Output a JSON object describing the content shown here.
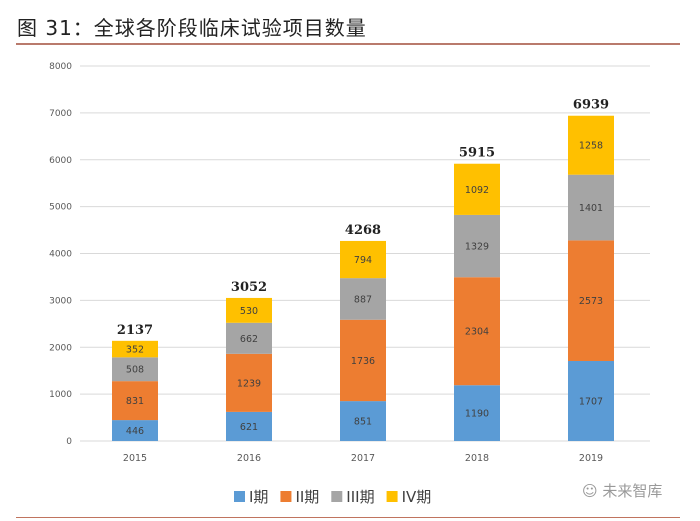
{
  "title": "图 31：全球各阶段临床试验项目数量",
  "watermark": "未来智库",
  "chart_data": {
    "type": "bar",
    "stacked": true,
    "categories": [
      "2015",
      "2016",
      "2017",
      "2018",
      "2019"
    ],
    "series": [
      {
        "name": "I期",
        "color": "#5b9bd5",
        "values": [
          446,
          621,
          851,
          1190,
          1707
        ]
      },
      {
        "name": "II期",
        "color": "#ed7d31",
        "values": [
          831,
          1239,
          1736,
          2304,
          2573
        ]
      },
      {
        "name": "III期",
        "color": "#a5a5a5",
        "values": [
          508,
          662,
          887,
          1329,
          1401
        ]
      },
      {
        "name": "IV期",
        "color": "#ffc000",
        "values": [
          352,
          530,
          794,
          1092,
          1258
        ]
      }
    ],
    "totals": [
      2137,
      3052,
      4268,
      5915,
      6939
    ],
    "ylim": [
      0,
      8000
    ],
    "yticks": [
      0,
      1000,
      2000,
      3000,
      4000,
      5000,
      6000,
      7000,
      8000
    ],
    "grid": true,
    "legend": "bottom"
  }
}
